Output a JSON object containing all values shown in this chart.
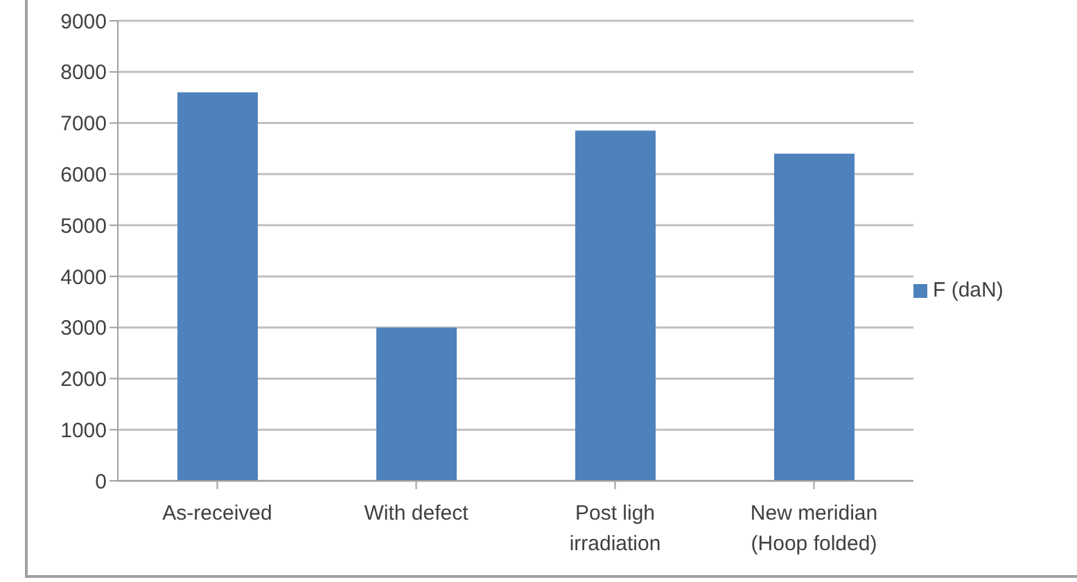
{
  "chart_data": {
    "type": "bar",
    "categories": [
      "As-received",
      "With defect",
      "Post ligh irradiation",
      "New meridian (Hoop folded)"
    ],
    "series": [
      {
        "name": "F (daN)",
        "color": "#4f81bd",
        "values": [
          7600,
          3000,
          6850,
          6400
        ]
      }
    ],
    "ylim": [
      0,
      9000
    ],
    "yticks": [
      0,
      1000,
      2000,
      3000,
      4000,
      5000,
      6000,
      7000,
      8000,
      9000
    ],
    "grid": "y",
    "legend": "right"
  }
}
